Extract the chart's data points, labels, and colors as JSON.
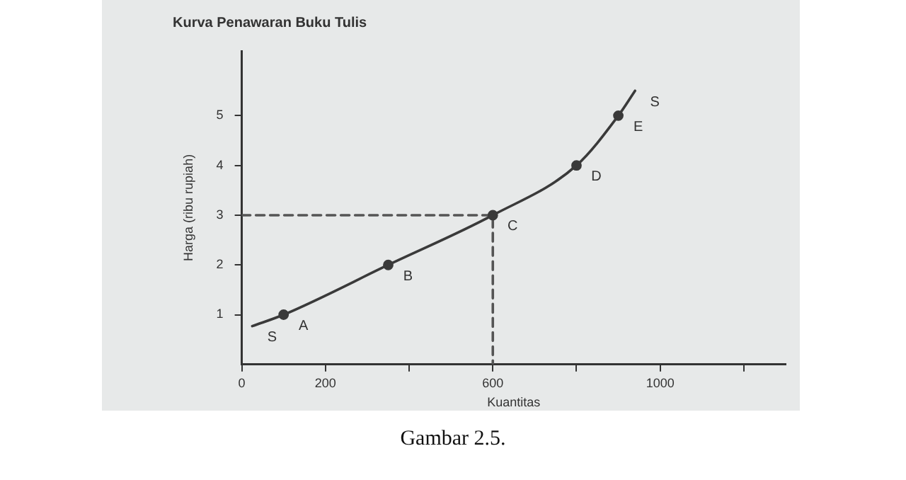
{
  "chart_data": {
    "type": "line",
    "title": "Kurva Penawaran Buku Tulis",
    "xlabel": "Kuantitas",
    "ylabel": "Harga (ribu rupiah)",
    "series": [
      {
        "color": "#3a3a3a",
        "marker": "none",
        "line_style": "solid",
        "x": [
          25,
          100,
          350,
          600,
          800,
          900,
          940
        ],
        "values": [
          0.77,
          1,
          2,
          3,
          4,
          5,
          5.5
        ]
      },
      {
        "type": "scatter",
        "color": "#3a3a3a",
        "marker": "circle",
        "x": [
          100,
          350,
          600,
          800,
          900
        ],
        "values": [
          1,
          2,
          3,
          4,
          5
        ]
      },
      {
        "type": "line",
        "color": "#555555",
        "marker": "none",
        "line_style": "dashed",
        "x": [
          0,
          600,
          600
        ],
        "values": [
          3,
          3,
          0
        ]
      }
    ],
    "xlim": [
      0,
      1300
    ],
    "xticks": [
      0,
      200,
      {
        "value": 400,
        "label": null
      },
      600,
      {
        "value": 800,
        "label": null
      },
      1000,
      {
        "value": 1200,
        "label": null
      }
    ],
    "ylim": [
      0,
      6.3
    ],
    "yticks": [
      1,
      2,
      3,
      4,
      5
    ],
    "annotations": [
      {
        "text": "S",
        "x": 25,
        "y": 0.77
      },
      {
        "text": "A",
        "x": 100,
        "y": 1
      },
      {
        "text": "B",
        "x": 350,
        "y": 2
      },
      {
        "text": "C",
        "x": 600,
        "y": 3
      },
      {
        "text": "D",
        "x": 800,
        "y": 4
      },
      {
        "text": "E",
        "x": 900,
        "y": 5
      },
      {
        "text": "S",
        "x": 940,
        "y": 5.5
      },
      "Gambar 2.5."
    ],
    "grid": false,
    "legend": false
  }
}
